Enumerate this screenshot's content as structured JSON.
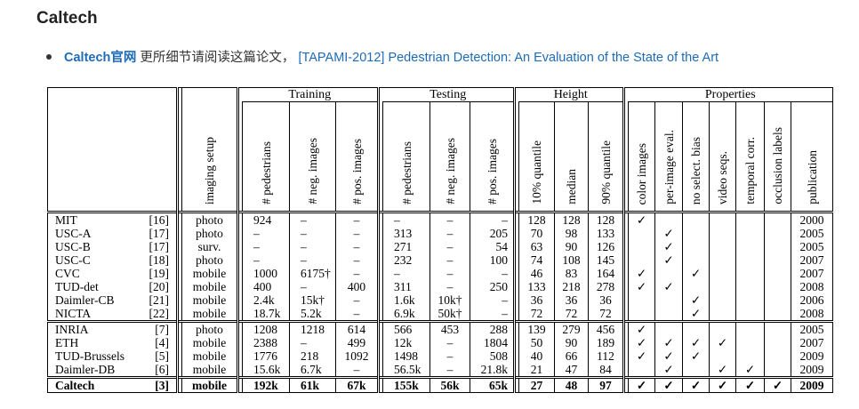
{
  "title": "Caltech",
  "reference": {
    "site_link": "Caltech官网",
    "text": "更所细节请阅读这篇论文，",
    "paper_link": "[TAPAMI-2012] Pedestrian Detection: An Evaluation of the State of the Art"
  },
  "table": {
    "groups": {
      "training": "Training",
      "testing": "Testing",
      "height": "Height",
      "properties": "Properties"
    },
    "headers": {
      "imaging": "imaging setup",
      "training": [
        "# pedestrians",
        "# neg. images",
        "# pos. images"
      ],
      "testing": [
        "# pedestrians",
        "# neg. images",
        "# pos. images"
      ],
      "height": [
        "10% quantile",
        "median",
        "90% quantile"
      ],
      "properties": [
        "color images",
        "per-image eval.",
        "no select. bias",
        "video seqs.",
        "temporal corr.",
        "occlusion labels",
        "publication"
      ]
    },
    "check_symbol": "✓",
    "rows": [
      {
        "name": "MIT",
        "ref": "[16]",
        "setup": "photo",
        "train": [
          "924",
          "–",
          "–"
        ],
        "test": [
          "–",
          "–",
          "–"
        ],
        "height": [
          "128",
          "128",
          "128"
        ],
        "props": [
          true,
          false,
          false,
          false,
          false,
          false
        ],
        "year": "2000"
      },
      {
        "name": "USC-A",
        "ref": "[17]",
        "setup": "photo",
        "train": [
          "–",
          "–",
          "–"
        ],
        "test": [
          "313",
          "–",
          "205"
        ],
        "height": [
          "70",
          "98",
          "133"
        ],
        "props": [
          false,
          true,
          false,
          false,
          false,
          false
        ],
        "year": "2005"
      },
      {
        "name": "USC-B",
        "ref": "[17]",
        "setup": "surv.",
        "train": [
          "–",
          "–",
          "–"
        ],
        "test": [
          "271",
          "–",
          "54"
        ],
        "height": [
          "63",
          "90",
          "126"
        ],
        "props": [
          false,
          true,
          false,
          false,
          false,
          false
        ],
        "year": "2005"
      },
      {
        "name": "USC-C",
        "ref": "[18]",
        "setup": "photo",
        "train": [
          "–",
          "–",
          "–"
        ],
        "test": [
          "232",
          "–",
          "100"
        ],
        "height": [
          "74",
          "108",
          "145"
        ],
        "props": [
          false,
          true,
          false,
          false,
          false,
          false
        ],
        "year": "2007"
      },
      {
        "name": "CVC",
        "ref": "[19]",
        "setup": "mobile",
        "train": [
          "1000",
          "6175†",
          "–"
        ],
        "test": [
          "–",
          "–",
          "–"
        ],
        "height": [
          "46",
          "83",
          "164"
        ],
        "props": [
          true,
          false,
          true,
          false,
          false,
          false
        ],
        "year": "2007"
      },
      {
        "name": "TUD-det",
        "ref": "[20]",
        "setup": "mobile",
        "train": [
          "400",
          "–",
          "400"
        ],
        "test": [
          "311",
          "–",
          "250"
        ],
        "height": [
          "133",
          "218",
          "278"
        ],
        "props": [
          true,
          true,
          false,
          false,
          false,
          false
        ],
        "year": "2008"
      },
      {
        "name": "Daimler-CB",
        "ref": "[21]",
        "setup": "mobile",
        "train": [
          "2.4k",
          "15k†",
          "–"
        ],
        "test": [
          "1.6k",
          "10k†",
          "–"
        ],
        "height": [
          "36",
          "36",
          "36"
        ],
        "props": [
          false,
          false,
          true,
          false,
          false,
          false
        ],
        "year": "2006"
      },
      {
        "name": "NICTA",
        "ref": "[22]",
        "setup": "mobile",
        "train": [
          "18.7k",
          "5.2k",
          "–"
        ],
        "test": [
          "6.9k",
          "50k†",
          "–"
        ],
        "height": [
          "72",
          "72",
          "72"
        ],
        "props": [
          false,
          false,
          true,
          false,
          false,
          false
        ],
        "year": "2008"
      },
      {
        "name": "INRIA",
        "ref": "[7]",
        "setup": "photo",
        "train": [
          "1208",
          "1218",
          "614"
        ],
        "test": [
          "566",
          "453",
          "288"
        ],
        "height": [
          "139",
          "279",
          "456"
        ],
        "props": [
          true,
          false,
          false,
          false,
          false,
          false
        ],
        "year": "2005"
      },
      {
        "name": "ETH",
        "ref": "[4]",
        "setup": "mobile",
        "train": [
          "2388",
          "–",
          "499"
        ],
        "test": [
          "12k",
          "–",
          "1804"
        ],
        "height": [
          "50",
          "90",
          "189"
        ],
        "props": [
          true,
          true,
          true,
          true,
          false,
          false
        ],
        "year": "2007"
      },
      {
        "name": "TUD-Brussels",
        "ref": "[5]",
        "setup": "mobile",
        "train": [
          "1776",
          "218",
          "1092"
        ],
        "test": [
          "1498",
          "–",
          "508"
        ],
        "height": [
          "40",
          "66",
          "112"
        ],
        "props": [
          true,
          true,
          true,
          false,
          false,
          false
        ],
        "year": "2009"
      },
      {
        "name": "Daimler-DB",
        "ref": "[6]",
        "setup": "mobile",
        "train": [
          "15.6k",
          "6.7k",
          "–"
        ],
        "test": [
          "56.5k",
          "–",
          "21.8k"
        ],
        "height": [
          "21",
          "47",
          "84"
        ],
        "props": [
          false,
          true,
          false,
          true,
          true,
          false
        ],
        "year": "2009"
      },
      {
        "name": "Caltech",
        "ref": "[3]",
        "setup": "mobile",
        "train": [
          "192k",
          "61k",
          "67k"
        ],
        "test": [
          "155k",
          "56k",
          "65k"
        ],
        "height": [
          "27",
          "48",
          "97"
        ],
        "props": [
          true,
          true,
          true,
          true,
          true,
          true
        ],
        "year": "2009"
      }
    ]
  }
}
